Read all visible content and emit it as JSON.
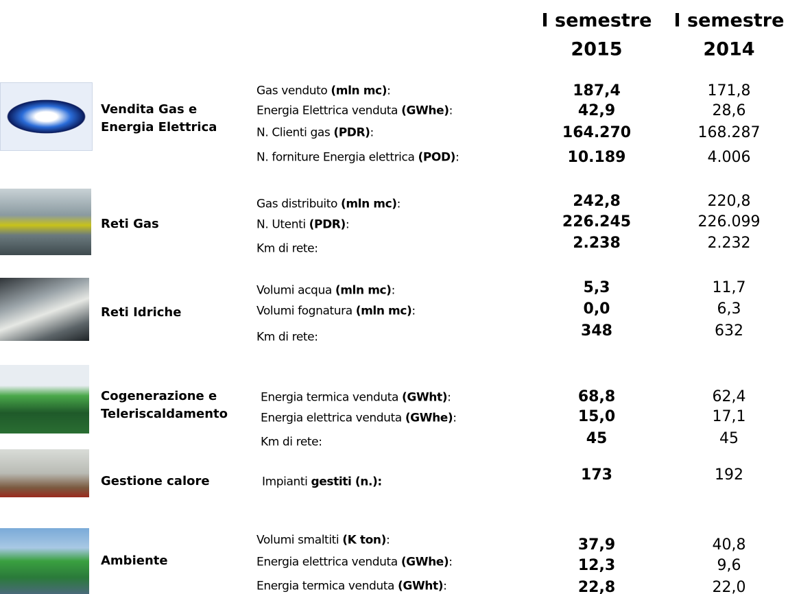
{
  "header": {
    "columns": [
      [
        "I semestre",
        "2015"
      ],
      [
        "I semestre",
        "2014"
      ]
    ]
  },
  "sections": [
    {
      "name": [
        "Vendita Gas e",
        "Energia Elettrica"
      ],
      "rows": [
        {
          "label": [
            "Gas venduto ",
            "(mln mc)",
            ":"
          ],
          "values": [
            "187,4",
            "171,8"
          ]
        },
        {
          "label": [
            "Energia Elettrica venduta ",
            "(GWhe)",
            ":"
          ],
          "values": [
            "42,9",
            "28,6"
          ]
        },
        {
          "label": [
            "N. Clienti gas ",
            "(PDR)",
            ":"
          ],
          "values": [
            "164.270",
            "168.287"
          ]
        },
        {
          "label": [
            "N. forniture Energia elettrica ",
            "(POD)",
            ":"
          ],
          "values": [
            "10.189",
            "4.006"
          ]
        }
      ]
    },
    {
      "name": [
        "Reti Gas"
      ],
      "rows": [
        {
          "label": [
            "Gas distribuito ",
            "(mln mc)",
            ":"
          ],
          "values": [
            "242,8",
            "220,8"
          ]
        },
        {
          "label": [
            "N. Utenti ",
            "(PDR)",
            ":"
          ],
          "values": [
            "226.245",
            "226.099"
          ]
        },
        {
          "label": [
            "Km di rete:"
          ],
          "values": [
            "2.238",
            "2.232"
          ]
        }
      ]
    },
    {
      "name": [
        "Reti Idriche"
      ],
      "rows": [
        {
          "label": [
            "Volumi acqua ",
            "(mln mc)",
            ":"
          ],
          "values": [
            "5,3",
            "11,7"
          ]
        },
        {
          "label": [
            "Volumi fognatura ",
            "(mln mc)",
            ":"
          ],
          "values": [
            "0,0",
            "6,3"
          ]
        },
        {
          "label": [
            "Km di rete:"
          ],
          "values": [
            "348",
            "632"
          ]
        }
      ]
    },
    {
      "name": [
        "Cogenerazione e",
        "Teleriscaldamento"
      ],
      "rows": [
        {
          "label": [
            "Energia termica venduta ",
            "(GWht)",
            ":"
          ],
          "values": [
            "68,8",
            "62,4"
          ]
        },
        {
          "label": [
            "Energia elettrica venduta ",
            "(GWhe)",
            ":"
          ],
          "values": [
            "15,0",
            "17,1"
          ]
        },
        {
          "label": [
            "Km di rete:"
          ],
          "values": [
            "45",
            "45"
          ]
        }
      ]
    },
    {
      "name": [
        "Gestione calore"
      ],
      "rows": [
        {
          "label": [
            "Impianti ",
            "gestiti (n.):"
          ],
          "values": [
            "173",
            "192"
          ]
        }
      ]
    },
    {
      "name": [
        "Ambiente"
      ],
      "rows": [
        {
          "label": [
            "Volumi smaltiti ",
            "(K ton)",
            ":"
          ],
          "values": [
            "37,9",
            "40,8"
          ]
        },
        {
          "label": [
            "Energia elettrica venduta ",
            "(GWhe)",
            ":"
          ],
          "values": [
            "12,3",
            "9,6"
          ]
        },
        {
          "label": [
            "Energia termica venduta ",
            "(GWht)",
            ":"
          ],
          "values": [
            "22,8",
            "22,0"
          ]
        }
      ]
    }
  ]
}
